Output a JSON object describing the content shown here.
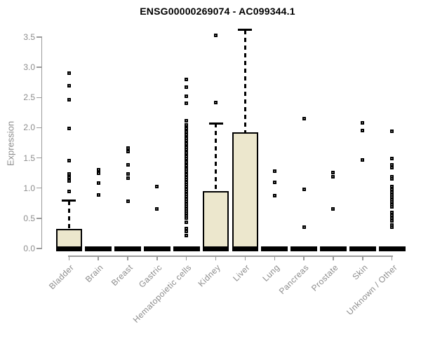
{
  "chart_data": {
    "type": "boxplot",
    "title": "ENSG00000269074 - AC099344.1",
    "ylabel": "Expression",
    "ylim": [
      0,
      3.5
    ],
    "yticks": [
      0.0,
      0.5,
      1.0,
      1.5,
      2.0,
      2.5,
      3.0,
      3.5
    ],
    "grid": false,
    "legend": "none",
    "colors": {
      "box_fill": "#ece7cd",
      "box_border": "#000000",
      "axis": "#9a9a9a",
      "tick_text": "#8c8c8c",
      "title_text": "#000000"
    },
    "categories": [
      "Bladder",
      "Brain",
      "Breast",
      "Gastric",
      "Hematopoietic cells",
      "Kidney",
      "Liver",
      "Lung",
      "Pancreas",
      "Prostate",
      "Skin",
      "Unknown / Other"
    ],
    "series": [
      {
        "name": "Bladder",
        "q1": 0,
        "median": 0,
        "q3": 0.33,
        "whisker_low": 0,
        "whisker_high": 0.79,
        "outliers": [
          2.9,
          2.7,
          2.46,
          1.99,
          1.45,
          1.23,
          1.18,
          1.12,
          0.95
        ]
      },
      {
        "name": "Brain",
        "q1": 0,
        "median": 0,
        "q3": 0,
        "whisker_low": 0,
        "whisker_high": 0,
        "outliers": [
          1.3,
          1.25,
          1.08,
          0.89
        ]
      },
      {
        "name": "Breast",
        "q1": 0,
        "median": 0,
        "q3": 0,
        "whisker_low": 0,
        "whisker_high": 0,
        "outliers": [
          1.66,
          1.6,
          1.38,
          1.24,
          1.17,
          0.78
        ]
      },
      {
        "name": "Gastric",
        "q1": 0,
        "median": 0,
        "q3": 0,
        "whisker_low": 0,
        "whisker_high": 0,
        "outliers": [
          1.03,
          0.66
        ]
      },
      {
        "name": "Hematopoietic cells",
        "q1": 0,
        "median": 0,
        "q3": 0,
        "whisker_low": 0,
        "whisker_high": 0,
        "outliers": [
          2.8,
          2.67,
          2.52,
          2.41,
          2.12,
          2.05,
          1.99,
          1.93,
          1.88,
          1.82,
          1.79,
          1.76,
          1.73,
          1.7,
          1.67,
          1.64,
          1.61,
          1.58,
          1.55,
          1.52,
          1.49,
          1.46,
          1.43,
          1.4,
          1.37,
          1.34,
          1.31,
          1.28,
          1.25,
          1.22,
          1.18,
          1.14,
          1.1,
          1.06,
          1.02,
          0.98,
          0.94,
          0.9,
          0.86,
          0.82,
          0.78,
          0.74,
          0.7,
          0.66,
          0.62,
          0.58,
          0.54,
          0.5,
          0.44,
          0.33,
          0.28,
          0.22
        ]
      },
      {
        "name": "Kidney",
        "q1": 0,
        "median": 0,
        "q3": 0.95,
        "whisker_low": 0,
        "whisker_high": 2.07,
        "outliers": [
          3.53,
          2.42
        ]
      },
      {
        "name": "Liver",
        "q1": 0,
        "median": 0,
        "q3": 1.92,
        "whisker_low": 0,
        "whisker_high": 3.62,
        "outliers": []
      },
      {
        "name": "Lung",
        "q1": 0,
        "median": 0,
        "q3": 0,
        "whisker_low": 0,
        "whisker_high": 0,
        "outliers": [
          1.28,
          1.09,
          0.88
        ]
      },
      {
        "name": "Pancreas",
        "q1": 0,
        "median": 0,
        "q3": 0,
        "whisker_low": 0,
        "whisker_high": 0,
        "outliers": [
          2.15,
          0.98,
          0.35
        ]
      },
      {
        "name": "Prostate",
        "q1": 0,
        "median": 0,
        "q3": 0,
        "whisker_low": 0,
        "whisker_high": 0,
        "outliers": [
          1.26,
          1.19,
          0.66
        ]
      },
      {
        "name": "Skin",
        "q1": 0,
        "median": 0,
        "q3": 0,
        "whisker_low": 0,
        "whisker_high": 0,
        "outliers": [
          2.08,
          1.95,
          1.47
        ]
      },
      {
        "name": "Unknown / Other",
        "q1": 0,
        "median": 0,
        "q3": 0,
        "whisker_low": 0,
        "whisker_high": 0,
        "outliers": [
          1.94,
          1.49,
          1.38,
          1.34,
          1.19,
          1.15,
          1.02,
          0.98,
          0.93,
          0.89,
          0.85,
          0.81,
          0.77,
          0.73,
          0.69,
          0.6,
          0.55,
          0.5,
          0.46,
          0.39,
          0.35
        ]
      }
    ]
  }
}
